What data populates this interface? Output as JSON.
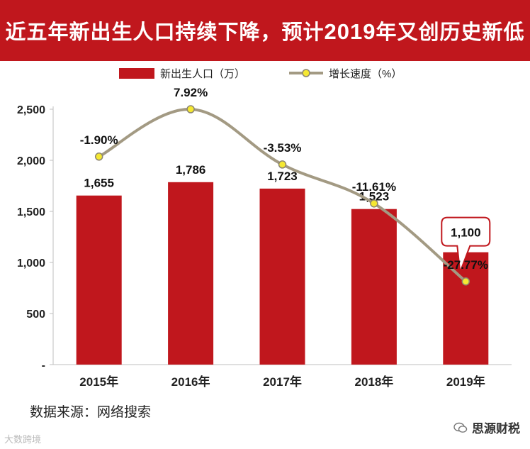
{
  "title": {
    "part1": "近五年新出生人口持续下降，预计",
    "year": "2019",
    "part2": "年又创历史新低"
  },
  "colors": {
    "bar": "#c0171d",
    "line": "#a39a83",
    "marker": "#f5e832",
    "title_bg": "#c0171d"
  },
  "chart_data": {
    "type": "bar+line",
    "categories": [
      "2015年",
      "2016年",
      "2017年",
      "2018年",
      "2019年"
    ],
    "series": [
      {
        "name": "新出生人口（万）",
        "type": "bar",
        "values": [
          1655,
          1786,
          1723,
          1523,
          1100
        ],
        "labels": [
          "1,655",
          "1,786",
          "1,723",
          "1,523",
          "1,100"
        ]
      },
      {
        "name": "增长速度（%）",
        "type": "line",
        "values": [
          -1.9,
          7.92,
          -3.53,
          -11.61,
          -27.77
        ],
        "labels": [
          "-1.90%",
          "7.92%",
          "-3.53%",
          "-11.61%",
          "-27.77%"
        ]
      }
    ],
    "y_axis": {
      "min": 0,
      "max": 2500,
      "ticks": [
        0,
        500,
        1000,
        1500,
        2000,
        2500
      ],
      "tick_labels": [
        "-",
        "500",
        "1,000",
        "1,500",
        "2,000",
        "2,500"
      ]
    },
    "secondary_axis": {
      "min": -45,
      "max": 7.92,
      "visible": false
    },
    "legend": {
      "position": "top"
    },
    "callout": {
      "category": "2019年",
      "text": "1,100"
    }
  },
  "source": "数据来源：网络搜索",
  "watermark_left": "大数跨境",
  "watermark_right": "思源财税"
}
